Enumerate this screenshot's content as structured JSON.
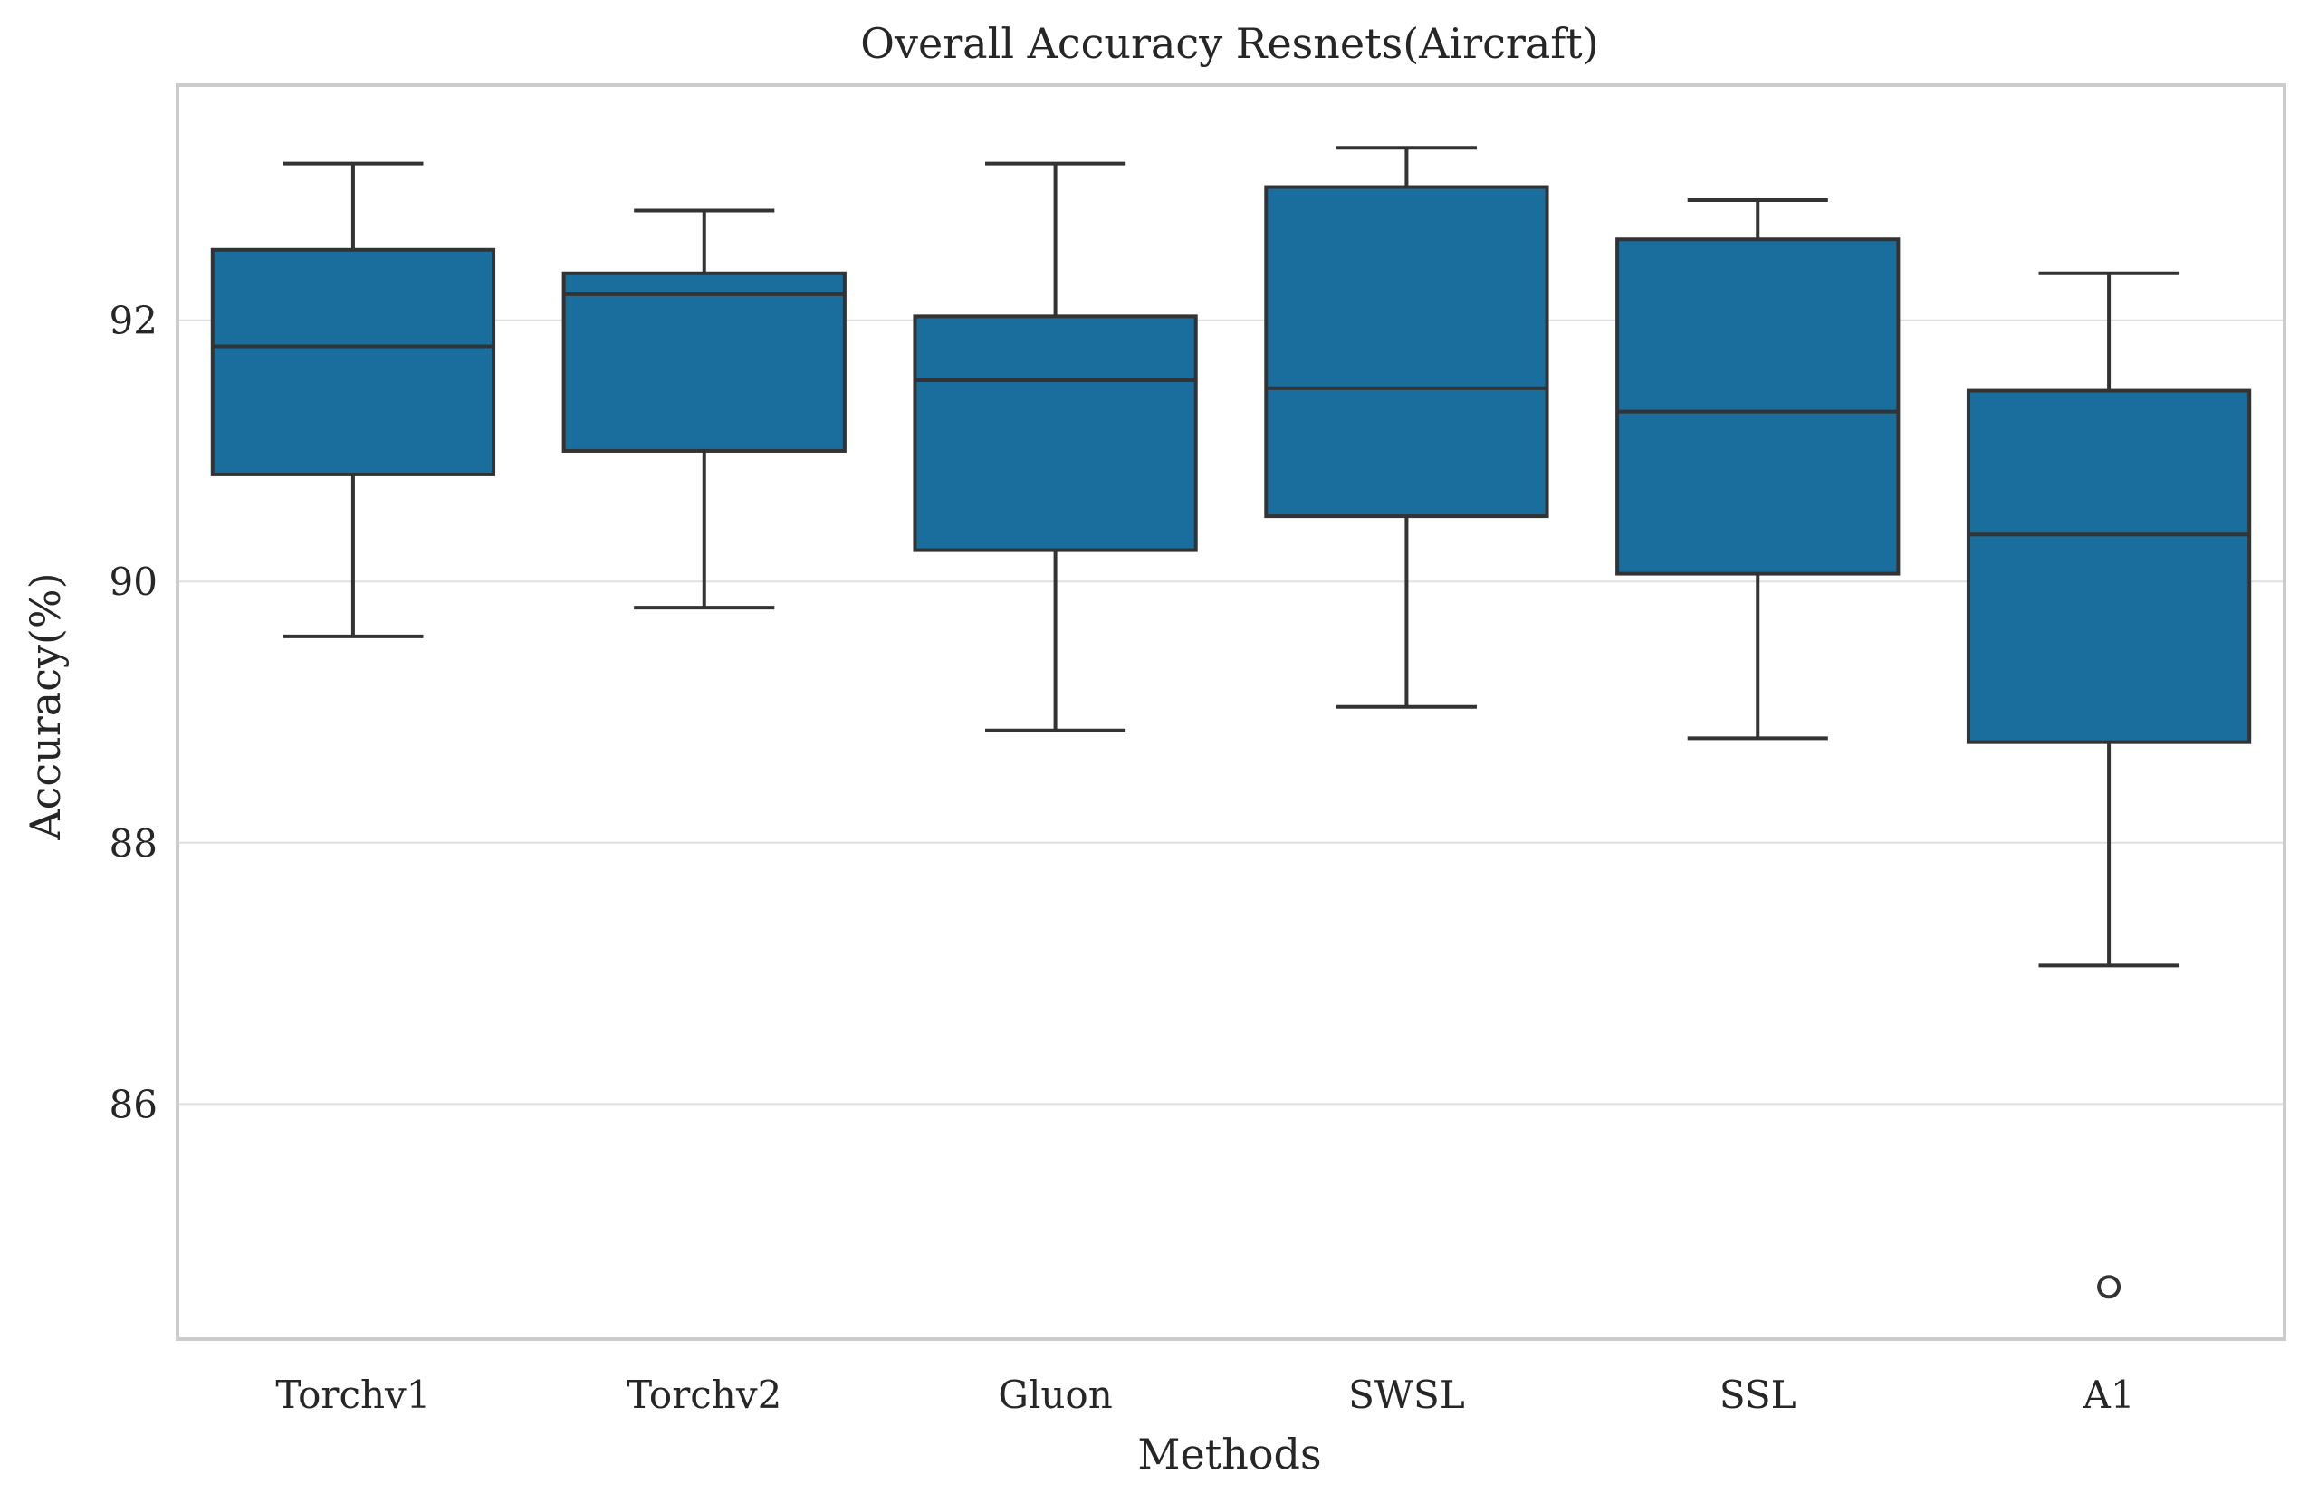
{
  "chart_data": {
    "type": "box",
    "title": "Overall Accuracy Resnets(Aircraft)",
    "xlabel": "Methods",
    "ylabel": "Accuracy(%)",
    "ylim": [
      84.2,
      93.8
    ],
    "yticks": [
      86,
      88,
      90,
      92
    ],
    "grid": "horizontal",
    "categories": [
      "Torchv1",
      "Torchv2",
      "Gluon",
      "SWSL",
      "SSL",
      "A1"
    ],
    "boxes": [
      {
        "category": "Torchv1",
        "whisker_low": 89.58,
        "q1": 90.82,
        "median": 91.8,
        "q3": 92.54,
        "whisker_high": 93.2,
        "outliers": []
      },
      {
        "category": "Torchv2",
        "whisker_low": 89.8,
        "q1": 91.0,
        "median": 92.2,
        "q3": 92.36,
        "whisker_high": 92.84,
        "outliers": []
      },
      {
        "category": "Gluon",
        "whisker_low": 88.86,
        "q1": 90.24,
        "median": 91.54,
        "q3": 92.03,
        "whisker_high": 93.2,
        "outliers": []
      },
      {
        "category": "SWSL",
        "whisker_low": 89.04,
        "q1": 90.5,
        "median": 91.48,
        "q3": 93.02,
        "whisker_high": 93.32,
        "outliers": []
      },
      {
        "category": "SSL",
        "whisker_low": 88.8,
        "q1": 90.06,
        "median": 91.3,
        "q3": 92.62,
        "whisker_high": 92.92,
        "outliers": []
      },
      {
        "category": "A1",
        "whisker_low": 87.06,
        "q1": 88.77,
        "median": 90.36,
        "q3": 91.46,
        "whisker_high": 92.36,
        "outliers": [
          84.6
        ]
      }
    ],
    "colors": {
      "box_fill": "#1a6e9e",
      "line": "#333333",
      "grid": "#e0e0e0",
      "frame": "#cccccc",
      "text": "#262626"
    }
  }
}
